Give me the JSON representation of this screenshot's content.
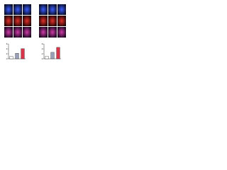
{
  "chart_data": [
    {
      "type": "bar",
      "values": [
        1,
        2.2,
        4.1
      ],
      "colors": [
        "#ffffff",
        "#9aa0b8",
        "#d8344a"
      ],
      "ylim": [
        0,
        6
      ],
      "yticks": [
        0,
        2,
        4,
        6
      ]
    },
    {
      "type": "bar",
      "values": [
        1,
        2.6,
        4.6
      ],
      "colors": [
        "#ffffff",
        "#9aa0b8",
        "#d8344a"
      ],
      "ylim": [
        0,
        6
      ],
      "yticks": [
        0,
        2,
        4,
        6
      ]
    }
  ]
}
